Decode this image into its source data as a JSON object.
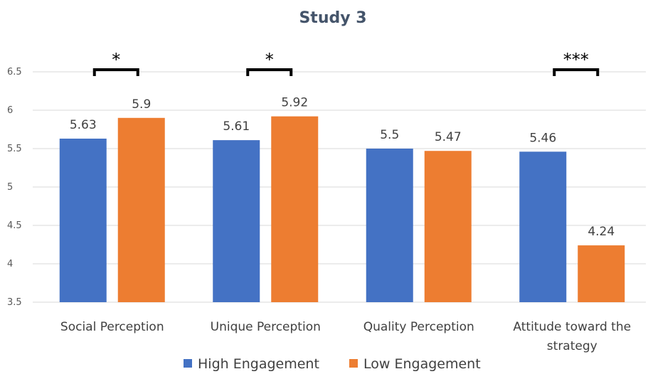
{
  "chart_data": {
    "type": "bar",
    "title": "Study 3",
    "categories": [
      "Social Perception",
      "Unique Perception",
      "Quality Perception",
      "Attitude toward the strategy"
    ],
    "category_lines": [
      [
        "Social Perception"
      ],
      [
        "Unique Perception"
      ],
      [
        "Quality Perception"
      ],
      [
        "Attitude toward the",
        "strategy"
      ]
    ],
    "series": [
      {
        "name": "High Engagement",
        "values": [
          5.63,
          5.61,
          5.5,
          5.46
        ],
        "color": "#4472c4"
      },
      {
        "name": "Low Engagement",
        "values": [
          5.9,
          5.92,
          5.47,
          4.24
        ],
        "color": "#ed7d31"
      }
    ],
    "value_labels": [
      [
        "5.63",
        "5.61",
        "5.5",
        "5.46"
      ],
      [
        "5.9",
        "5.92",
        "5.47",
        "4.24"
      ]
    ],
    "yticks": [
      "3.5",
      "4",
      "4.5",
      "5",
      "5.5",
      "6",
      "6.5"
    ],
    "ylim": [
      3.5,
      6.5
    ],
    "significance": [
      "*",
      "*",
      "",
      "***"
    ],
    "grid": true,
    "legend_position": "bottom"
  }
}
